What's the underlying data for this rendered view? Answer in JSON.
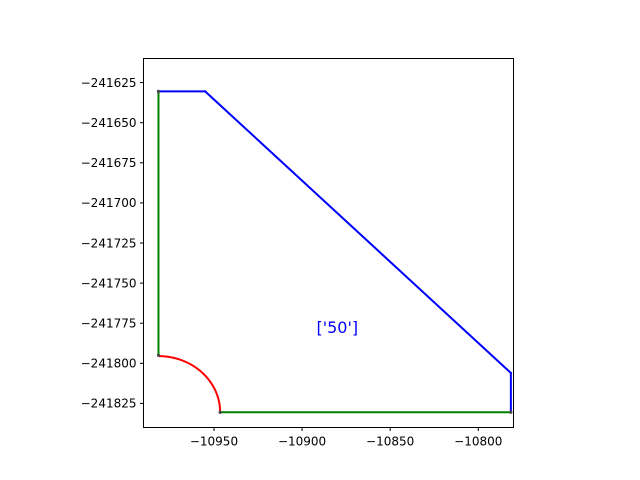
{
  "chart_data": {
    "type": "line",
    "title": "",
    "xlabel": "",
    "ylabel": "",
    "xlim": [
      -10990,
      -10780
    ],
    "ylim": [
      -241840,
      -241610
    ],
    "grid": false,
    "x_ticks": [
      -10950,
      -10900,
      -10850,
      -10800
    ],
    "y_ticks": [
      -241625,
      -241650,
      -241675,
      -241700,
      -241725,
      -241750,
      -241775,
      -241800,
      -241825
    ],
    "x_tick_labels": [
      "−10950",
      "−10900",
      "−10850",
      "−10800"
    ],
    "y_tick_labels": [
      "−241625",
      "−241650",
      "−241675",
      "−241700",
      "−241725",
      "−241750",
      "−241775",
      "−241800",
      "−241825"
    ],
    "series": [
      {
        "color": "#0000ff",
        "segments": [
          [
            [
              -10955,
              -241630.5
            ],
            [
              -10781.5,
              -241806
            ]
          ],
          [
            [
              -10781.5,
              -241806
            ],
            [
              -10781.5,
              -241830.5
            ]
          ],
          [
            [
              -10981.5,
              -241630.5
            ],
            [
              -10955,
              -241630.5
            ]
          ]
        ]
      },
      {
        "color": "#008000",
        "segments": [
          [
            [
              -10981.5,
              -241630.5
            ],
            [
              -10981.5,
              -241795
            ]
          ],
          [
            [
              -10946.5,
              -241830.5
            ],
            [
              -10781.5,
              -241830.5
            ]
          ]
        ]
      },
      {
        "color": "#ff0000",
        "type": "arc",
        "center": [
          -10981.5,
          -241830.5
        ],
        "radius": 35,
        "start_deg": 90,
        "end_deg": 0
      }
    ],
    "points": [
      [
        -10981.5,
        -241795
      ],
      [
        -10946.5,
        -241830.5
      ],
      [
        -10981.5,
        -241630.5
      ],
      [
        -10781.5,
        -241830.5
      ]
    ],
    "annotations": [
      {
        "text": "['50']",
        "x": -10880,
        "y": -241781,
        "color": "#0000ff"
      }
    ]
  }
}
